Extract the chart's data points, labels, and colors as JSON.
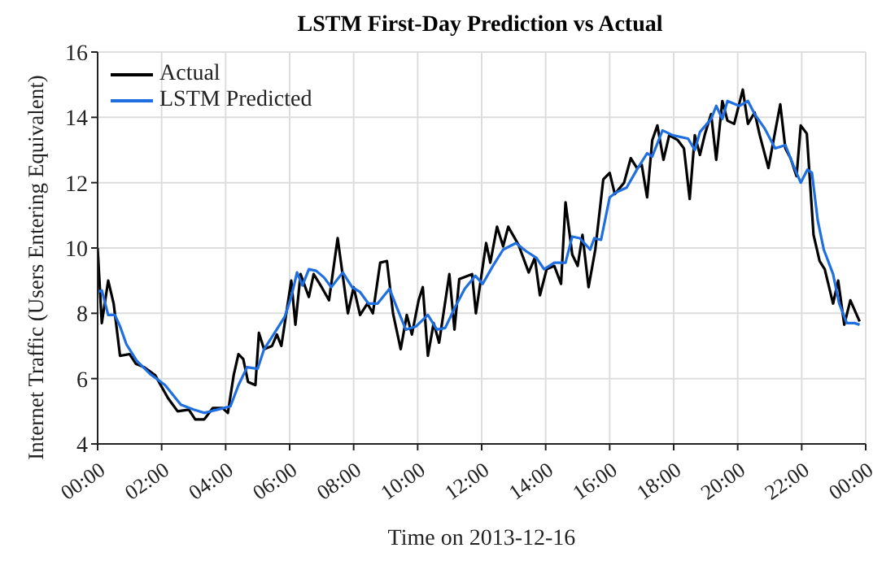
{
  "chart_data": {
    "type": "line",
    "title": "LSTM First-Day Prediction vs Actual",
    "xlabel": "Time on 2013-12-16",
    "ylabel": "Internet Traffic (Users Entering Equivalent)",
    "xlim": [
      0,
      24
    ],
    "xticks": [
      {
        "value": 0,
        "label": "00:00"
      },
      {
        "value": 2,
        "label": "02:00"
      },
      {
        "value": 4,
        "label": "04:00"
      },
      {
        "value": 6,
        "label": "06:00"
      },
      {
        "value": 8,
        "label": "08:00"
      },
      {
        "value": 10,
        "label": "10:00"
      },
      {
        "value": 12,
        "label": "12:00"
      },
      {
        "value": 14,
        "label": "14:00"
      },
      {
        "value": 16,
        "label": "16:00"
      },
      {
        "value": 18,
        "label": "18:00"
      },
      {
        "value": 20,
        "label": "20:00"
      },
      {
        "value": 22,
        "label": "22:00"
      },
      {
        "value": 24,
        "label": "00:00"
      }
    ],
    "ylim": [
      4,
      16
    ],
    "yticks": [
      4,
      6,
      8,
      10,
      12,
      14,
      16
    ],
    "grid": true,
    "legend": "top left",
    "marker": "none",
    "line_style": "solid",
    "series": [
      {
        "name": "Actual",
        "color": "#000000",
        "x": [
          0,
          0.13,
          0.33,
          0.5,
          0.7,
          1.0,
          1.2,
          1.45,
          1.8,
          2.2,
          2.5,
          2.85,
          3.05,
          3.33,
          3.6,
          3.9,
          4.07,
          4.25,
          4.4,
          4.55,
          4.7,
          4.93,
          5.04,
          5.2,
          5.45,
          5.6,
          5.74,
          6.05,
          6.18,
          6.34,
          6.6,
          6.75,
          7.0,
          7.23,
          7.5,
          7.82,
          8.0,
          8.2,
          8.43,
          8.6,
          8.83,
          9.04,
          9.23,
          9.47,
          9.66,
          9.82,
          10.03,
          10.16,
          10.32,
          10.5,
          10.67,
          10.99,
          11.15,
          11.3,
          11.7,
          11.82,
          12.14,
          12.27,
          12.48,
          12.67,
          12.83,
          13.15,
          13.47,
          13.66,
          13.82,
          14.03,
          14.27,
          14.48,
          14.62,
          14.83,
          15.0,
          15.15,
          15.34,
          15.55,
          15.8,
          16.0,
          16.16,
          16.45,
          16.66,
          16.85,
          17.0,
          17.17,
          17.33,
          17.49,
          17.68,
          17.86,
          18.13,
          18.32,
          18.5,
          18.66,
          18.82,
          18.98,
          19.17,
          19.33,
          19.52,
          19.68,
          19.89,
          20.16,
          20.32,
          20.53,
          20.69,
          20.96,
          21.12,
          21.33,
          21.49,
          21.65,
          21.84,
          21.97,
          22.16,
          22.37,
          22.56,
          22.72,
          22.98,
          23.14,
          23.33,
          23.52,
          23.81
        ],
        "values": [
          10.0,
          7.7,
          9.0,
          8.3,
          6.7,
          6.75,
          6.45,
          6.35,
          6.1,
          5.4,
          5.0,
          5.05,
          4.75,
          4.75,
          5.1,
          5.1,
          4.95,
          6.1,
          6.75,
          6.6,
          5.9,
          5.8,
          7.4,
          6.9,
          7.0,
          7.35,
          7.0,
          9.0,
          7.65,
          9.2,
          8.5,
          9.2,
          8.8,
          8.4,
          10.3,
          8.0,
          8.8,
          7.95,
          8.3,
          8.0,
          9.55,
          9.6,
          8.0,
          6.9,
          7.95,
          7.35,
          8.4,
          8.8,
          6.7,
          7.7,
          7.1,
          9.2,
          7.5,
          9.05,
          9.2,
          8.0,
          10.15,
          9.55,
          10.65,
          10.05,
          10.65,
          10.1,
          9.25,
          9.7,
          8.55,
          9.35,
          9.45,
          8.9,
          11.4,
          9.8,
          9.45,
          10.4,
          8.8,
          9.95,
          12.1,
          12.3,
          11.65,
          12.0,
          12.75,
          12.45,
          12.55,
          11.55,
          13.3,
          13.75,
          12.7,
          13.45,
          13.3,
          13.05,
          11.5,
          13.45,
          12.85,
          13.5,
          14.1,
          12.7,
          14.5,
          13.9,
          13.8,
          14.85,
          13.8,
          14.15,
          13.45,
          12.45,
          13.3,
          14.4,
          13.05,
          12.75,
          12.2,
          13.75,
          13.5,
          10.4,
          9.6,
          9.35,
          8.3,
          9.0,
          7.65,
          8.4,
          7.75
        ]
      },
      {
        "name": "LSTM Predicted",
        "color": "#1f6fe0",
        "x": [
          0,
          0.13,
          0.33,
          0.54,
          0.7,
          0.9,
          1.22,
          1.63,
          2.11,
          2.6,
          3.0,
          3.33,
          3.74,
          4.15,
          4.4,
          4.67,
          5.0,
          5.2,
          5.53,
          5.85,
          6.05,
          6.23,
          6.4,
          6.6,
          6.83,
          7.07,
          7.3,
          7.66,
          7.95,
          8.2,
          8.46,
          8.75,
          9.12,
          9.36,
          9.63,
          9.95,
          10.32,
          10.6,
          10.86,
          11.15,
          11.47,
          11.8,
          12.03,
          12.35,
          12.67,
          13.07,
          13.39,
          13.71,
          13.95,
          14.27,
          14.62,
          14.83,
          15.07,
          15.39,
          15.52,
          15.73,
          16.0,
          16.2,
          16.53,
          16.85,
          17.17,
          17.33,
          17.65,
          17.97,
          18.45,
          18.66,
          18.82,
          19.17,
          19.33,
          19.52,
          19.68,
          20.05,
          20.32,
          20.53,
          20.85,
          21.17,
          21.49,
          21.73,
          21.97,
          22.18,
          22.32,
          22.5,
          22.69,
          22.98,
          23.17,
          23.41,
          23.65,
          23.81
        ],
        "values": [
          8.65,
          8.7,
          7.95,
          7.95,
          7.6,
          7.05,
          6.55,
          6.15,
          5.8,
          5.2,
          5.05,
          4.95,
          5.05,
          5.15,
          5.8,
          6.35,
          6.3,
          6.9,
          7.4,
          7.9,
          8.5,
          9.25,
          8.85,
          9.35,
          9.3,
          9.1,
          8.8,
          9.25,
          8.8,
          8.65,
          8.3,
          8.3,
          8.75,
          8.15,
          7.5,
          7.6,
          7.95,
          7.5,
          7.55,
          8.15,
          8.75,
          9.15,
          8.9,
          9.45,
          9.95,
          10.15,
          9.9,
          9.7,
          9.35,
          9.55,
          9.55,
          10.35,
          10.3,
          9.95,
          10.3,
          10.25,
          11.55,
          11.7,
          11.85,
          12.4,
          12.9,
          12.8,
          13.6,
          13.45,
          13.35,
          13.0,
          13.55,
          13.95,
          14.35,
          13.95,
          14.5,
          14.35,
          14.5,
          14.1,
          13.65,
          13.05,
          13.15,
          12.55,
          12.0,
          12.4,
          12.3,
          10.85,
          9.95,
          9.2,
          8.3,
          7.7,
          7.7,
          7.65
        ]
      }
    ]
  }
}
